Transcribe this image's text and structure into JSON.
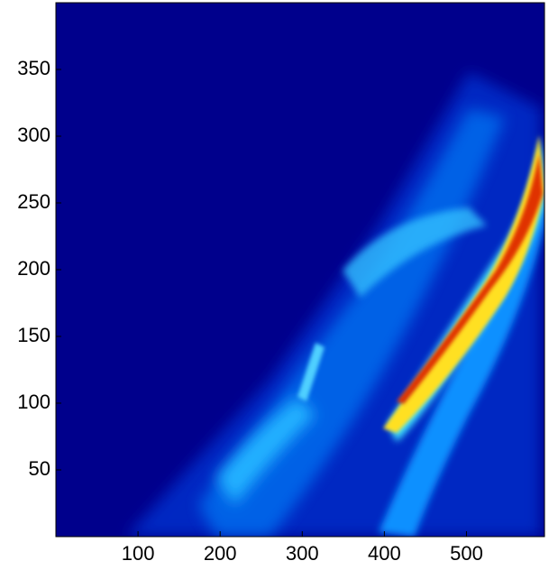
{
  "chart_data": {
    "type": "image",
    "colormap": "jet",
    "xlim": [
      0,
      595
    ],
    "xticks": [
      100,
      200,
      300,
      400,
      500
    ],
    "ylim": [
      0,
      400
    ],
    "yticks": [
      50,
      100,
      150,
      200,
      250,
      300,
      350
    ]
  }
}
